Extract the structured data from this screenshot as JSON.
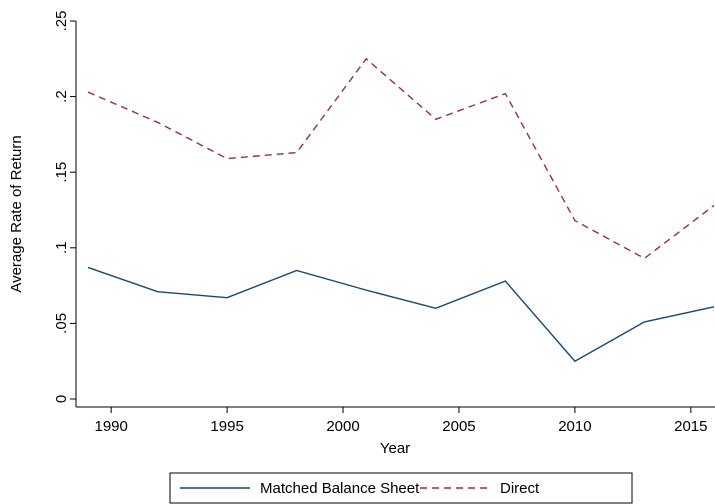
{
  "chart_data": {
    "type": "line",
    "xlabel": "Year",
    "ylabel": "Average Rate of Return",
    "x": [
      1989,
      1992,
      1995,
      1998,
      2001,
      2004,
      2007,
      2010,
      2013,
      2016
    ],
    "series": [
      {
        "name": "Matched Balance Sheet",
        "color": "#1a476f",
        "dash": "solid",
        "values": [
          0.087,
          0.071,
          0.067,
          0.085,
          0.072,
          0.06,
          0.078,
          0.025,
          0.051,
          0.061
        ]
      },
      {
        "name": "Direct",
        "color": "#90353b",
        "dash": "dashed",
        "values": [
          0.203,
          0.183,
          0.159,
          0.163,
          0.225,
          0.185,
          0.202,
          0.118,
          0.093,
          0.128
        ]
      }
    ],
    "xlim": [
      1989,
      2016
    ],
    "xticks": [
      1990,
      1995,
      2000,
      2005,
      2010,
      2015
    ],
    "ylim": [
      0,
      0.25
    ],
    "yticks": [
      0,
      {
        "value": 0.05,
        "label": ".05"
      },
      {
        "value": 0.1,
        "label": ".1"
      },
      {
        "value": 0.15,
        "label": ".15"
      },
      {
        "value": 0.2,
        "label": ".2"
      },
      {
        "value": 0.25,
        "label": ".25"
      }
    ],
    "grid": false,
    "legend": "bottom"
  }
}
